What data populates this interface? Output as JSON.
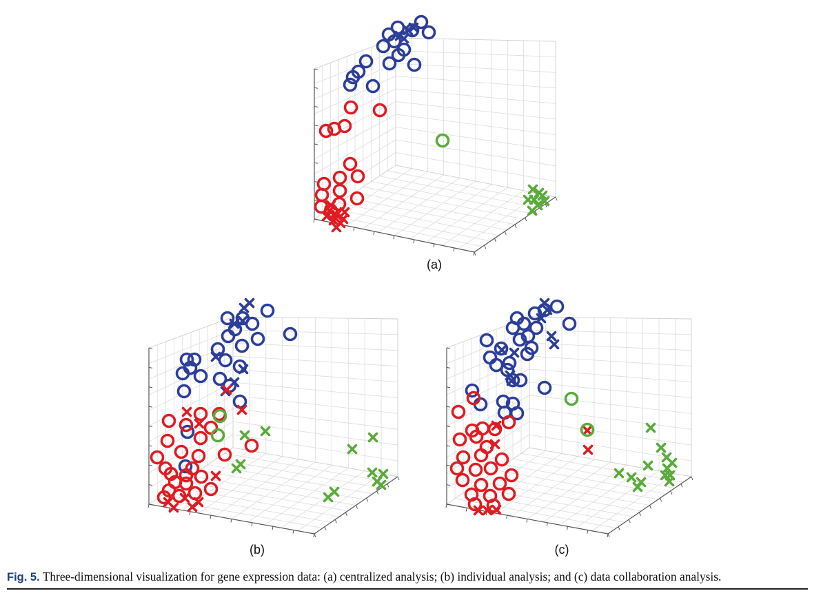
{
  "figure": {
    "caption_label": "Fig. 5.",
    "caption_text": " Three-dimensional visualization for gene expression data: (a) centralized analysis; (b) individual analysis; and (c) data collaboration analysis."
  },
  "colors": {
    "blue": "#2c3e9a",
    "red": "#e01b22",
    "green": "#5aab3a",
    "grid": "#dcdcdc",
    "axis": "#555555"
  },
  "chart_data": [
    {
      "type": "scatter",
      "panel_label": "(a)",
      "series": [
        {
          "color": "blue",
          "marker": "o",
          "points": [
            [
              564,
              50
            ],
            [
              577,
              40
            ],
            [
              598,
              44
            ],
            [
              611,
              32
            ],
            [
              622,
              47
            ],
            [
              556,
              67
            ],
            [
              572,
              60
            ],
            [
              586,
              72
            ],
            [
              578,
              80
            ],
            [
              601,
              94
            ],
            [
              531,
              89
            ],
            [
              520,
              104
            ],
            [
              512,
              112
            ],
            [
              508,
              123
            ],
            [
              541,
              125
            ],
            [
              565,
              92
            ]
          ]
        },
        {
          "color": "blue",
          "marker": "x",
          "points": [
            [
              586,
              56
            ],
            [
              592,
              44
            ],
            [
              600,
              40
            ],
            [
              580,
              52
            ]
          ]
        },
        {
          "color": "red",
          "marker": "o",
          "points": [
            [
              509,
              156
            ],
            [
              551,
              160
            ],
            [
              500,
              183
            ],
            [
              473,
              190
            ],
            [
              485,
              187
            ],
            [
              508,
              238
            ],
            [
              493,
              258
            ],
            [
              519,
              256
            ],
            [
              470,
              267
            ],
            [
              493,
              277
            ],
            [
              467,
              283
            ],
            [
              518,
              288
            ],
            [
              466,
              300
            ],
            [
              480,
              306
            ],
            [
              492,
              296
            ]
          ]
        },
        {
          "color": "red",
          "marker": "x",
          "points": [
            [
              478,
              306
            ],
            [
              488,
              312
            ],
            [
              498,
              318
            ],
            [
              484,
              320
            ],
            [
              494,
              324
            ],
            [
              474,
              314
            ],
            [
              488,
              330
            ],
            [
              500,
              308
            ],
            [
              480,
              298
            ]
          ]
        },
        {
          "color": "green",
          "marker": "o",
          "points": [
            [
              642,
              204
            ]
          ]
        },
        {
          "color": "green",
          "marker": "x",
          "points": [
            [
              773,
              275
            ],
            [
              782,
              280
            ],
            [
              790,
              292
            ],
            [
              775,
              290
            ],
            [
              766,
              290
            ],
            [
              780,
              298
            ],
            [
              772,
              306
            ],
            [
              787,
              284
            ]
          ]
        }
      ]
    },
    {
      "type": "scatter",
      "panel_label": "(b)",
      "series": [
        {
          "color": "blue",
          "marker": "o",
          "points": [
            [
              388,
              451
            ],
            [
              352,
              462
            ],
            [
              330,
              462
            ],
            [
              341,
              478
            ],
            [
              366,
              470
            ],
            [
              421,
              485
            ],
            [
              374,
              492
            ],
            [
              331,
              488
            ],
            [
              351,
              502
            ],
            [
              316,
              507
            ],
            [
              327,
              523
            ],
            [
              348,
              532
            ],
            [
              271,
              522
            ],
            [
              282,
              522
            ],
            [
              276,
              534
            ],
            [
              265,
              542
            ],
            [
              291,
              546
            ],
            [
              319,
              550
            ],
            [
              333,
              560
            ],
            [
              348,
              583
            ],
            [
              267,
              568
            ],
            [
              272,
              627
            ],
            [
              269,
              677
            ]
          ]
        },
        {
          "color": "blue",
          "marker": "x",
          "points": [
            [
              354,
              447
            ],
            [
              362,
              440
            ],
            [
              340,
              470
            ],
            [
              352,
              466
            ],
            [
              313,
              518
            ],
            [
              353,
              536
            ],
            [
              327,
              568
            ],
            [
              340,
              555
            ]
          ]
        },
        {
          "color": "red",
          "marker": "o",
          "points": [
            [
              291,
              601
            ],
            [
              245,
              611
            ],
            [
              270,
              617
            ],
            [
              291,
              636
            ],
            [
              243,
              640
            ],
            [
              263,
              656
            ],
            [
              228,
              664
            ],
            [
              288,
              662
            ],
            [
              248,
              688
            ],
            [
              270,
              690
            ],
            [
              292,
              692
            ],
            [
              306,
              710
            ],
            [
              245,
              712
            ],
            [
              260,
              720
            ],
            [
              283,
              716
            ],
            [
              238,
              722
            ],
            [
              254,
              700
            ],
            [
              270,
              702
            ],
            [
              279,
              680
            ],
            [
              240,
              680
            ],
            [
              326,
              660
            ],
            [
              365,
              647
            ],
            [
              318,
              601
            ],
            [
              306,
              621
            ]
          ]
        },
        {
          "color": "red",
          "marker": "x",
          "points": [
            [
              329,
              566
            ],
            [
              351,
              595
            ],
            [
              271,
              598
            ],
            [
              289,
              615
            ],
            [
              313,
              691
            ],
            [
              244,
              729
            ],
            [
              288,
              729
            ],
            [
              268,
              723
            ],
            [
              252,
              737
            ],
            [
              279,
              736
            ]
          ]
        },
        {
          "color": "green",
          "marker": "o",
          "points": [
            [
              319,
              604
            ],
            [
              316,
              632
            ]
          ]
        },
        {
          "color": "green",
          "marker": "x",
          "points": [
            [
              385,
              626
            ],
            [
              355,
              632
            ],
            [
              343,
              680
            ],
            [
              349,
              674
            ],
            [
              541,
              635
            ],
            [
              511,
              652
            ],
            [
              540,
              686
            ],
            [
              556,
              688
            ],
            [
              547,
              699
            ],
            [
              553,
              704
            ],
            [
              485,
              714
            ],
            [
              476,
              722
            ]
          ]
        }
      ]
    },
    {
      "type": "scatter",
      "panel_label": "(c)",
      "series": [
        {
          "color": "blue",
          "marker": "o",
          "points": [
            [
              808,
              445
            ],
            [
              790,
              450
            ],
            [
              776,
              455
            ],
            [
              750,
              462
            ],
            [
              760,
              470
            ],
            [
              744,
              476
            ],
            [
              778,
              476
            ],
            [
              766,
              488
            ],
            [
              826,
              470
            ],
            [
              754,
              493
            ],
            [
              771,
              505
            ],
            [
              765,
              514
            ],
            [
              706,
              494
            ],
            [
              727,
              506
            ],
            [
              711,
              519
            ],
            [
              739,
              527
            ],
            [
              720,
              530
            ],
            [
              736,
              537
            ],
            [
              744,
              552
            ],
            [
              755,
              552
            ],
            [
              790,
              563
            ],
            [
              685,
              567
            ],
            [
              697,
              587
            ],
            [
              730,
              583
            ],
            [
              744,
              586
            ],
            [
              750,
              600
            ],
            [
              732,
              599
            ]
          ]
        },
        {
          "color": "blue",
          "marker": "x",
          "points": [
            [
              790,
              440
            ],
            [
              794,
              450
            ],
            [
              785,
              462
            ],
            [
              800,
              488
            ],
            [
              804,
              500
            ],
            [
              746,
              512
            ],
            [
              728,
              508
            ],
            [
              740,
              545
            ],
            [
              742,
              553
            ]
          ]
        },
        {
          "color": "red",
          "marker": "o",
          "points": [
            [
              687,
              578
            ],
            [
              665,
              598
            ],
            [
              685,
              625
            ],
            [
              700,
              622
            ],
            [
              718,
              623
            ],
            [
              738,
              613
            ],
            [
              667,
              638
            ],
            [
              691,
              634
            ],
            [
              706,
              649
            ],
            [
              672,
              664
            ],
            [
              698,
              661
            ],
            [
              728,
              667
            ],
            [
              663,
              680
            ],
            [
              690,
              682
            ],
            [
              712,
              680
            ],
            [
              742,
              690
            ],
            [
              671,
              697
            ],
            [
              698,
              704
            ],
            [
              725,
              702
            ],
            [
              684,
              718
            ],
            [
              711,
              720
            ],
            [
              738,
              717
            ],
            [
              689,
              732
            ],
            [
              716,
              734
            ]
          ]
        },
        {
          "color": "red",
          "marker": "x",
          "points": [
            [
              852,
              625
            ],
            [
              853,
              653
            ],
            [
              720,
              618
            ],
            [
              718,
              645
            ],
            [
              694,
              741
            ],
            [
              707,
              741
            ],
            [
              720,
              740
            ]
          ]
        },
        {
          "color": "green",
          "marker": "o",
          "points": [
            [
              829,
              579
            ],
            [
              852,
              624
            ]
          ]
        },
        {
          "color": "green",
          "marker": "x",
          "points": [
            [
              944,
              621
            ],
            [
              959,
              650
            ],
            [
              967,
              664
            ],
            [
              975,
              672
            ],
            [
              968,
              680
            ],
            [
              972,
              690
            ],
            [
              940,
              676
            ],
            [
              898,
              687
            ],
            [
              916,
              693
            ],
            [
              925,
              707
            ],
            [
              930,
              700
            ],
            [
              971,
              699
            ],
            [
              965,
              690
            ]
          ]
        }
      ]
    }
  ]
}
